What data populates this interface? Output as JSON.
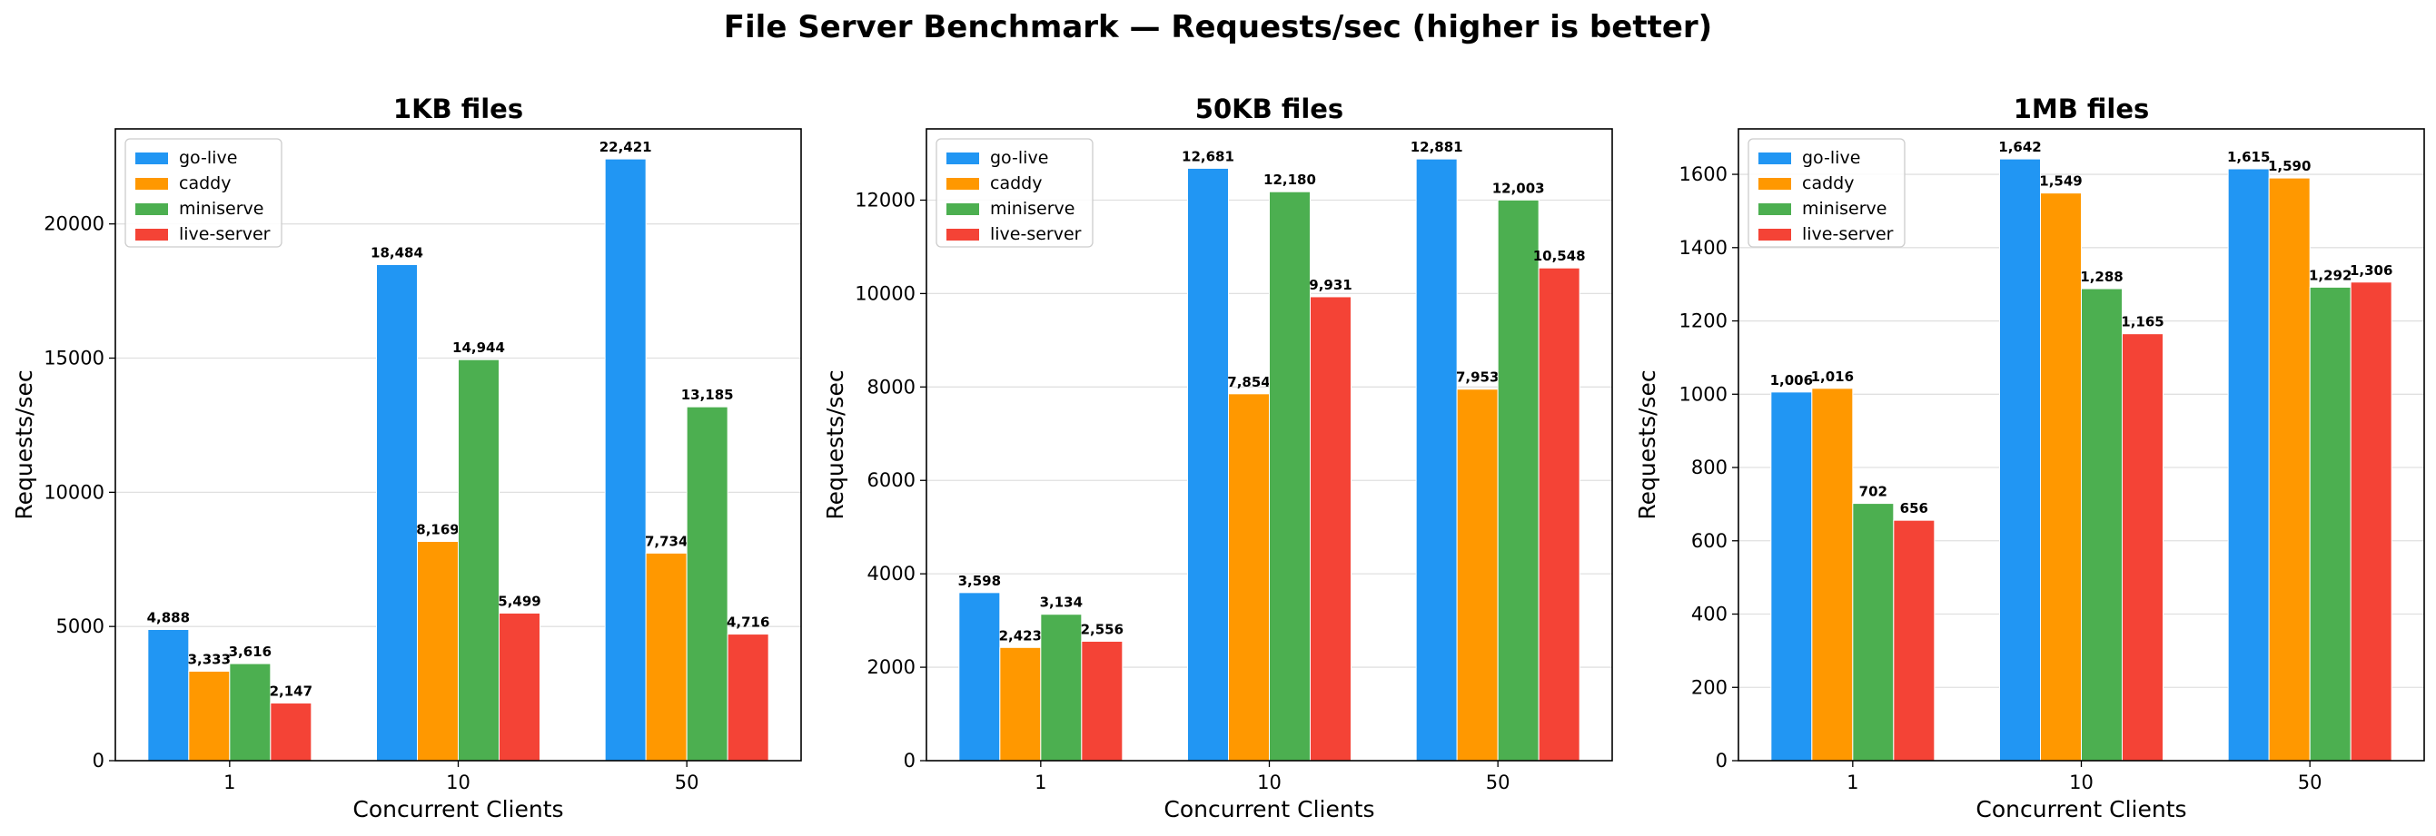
{
  "suptitle": "File Server Benchmark — Requests/sec (higher is better)",
  "colors": {
    "go-live": "#2196F3",
    "caddy": "#FF9800",
    "miniserve": "#4CAF50",
    "live-server": "#F44336"
  },
  "chart_data": [
    {
      "type": "bar",
      "title": "1KB files",
      "xlabel": "Concurrent Clients",
      "ylabel": "Requests/sec",
      "categories": [
        "1",
        "10",
        "50"
      ],
      "ylim": [
        0,
        23541
      ],
      "yticks": [
        0,
        5000,
        10000,
        15000,
        20000
      ],
      "grid": "y",
      "legend_position": "upper-left",
      "series": [
        {
          "name": "go-live",
          "values": [
            4888,
            18484,
            22421
          ],
          "labels": [
            "4,888",
            "18,484",
            "22,421"
          ]
        },
        {
          "name": "caddy",
          "values": [
            3333,
            8169,
            7734
          ],
          "labels": [
            "3,333",
            "8,169",
            "7,734"
          ]
        },
        {
          "name": "miniserve",
          "values": [
            3616,
            14944,
            13185
          ],
          "labels": [
            "3,616",
            "14,944",
            "13,185"
          ]
        },
        {
          "name": "live-server",
          "values": [
            2147,
            5499,
            4716
          ],
          "labels": [
            "2,147",
            "5,499",
            "4,716"
          ]
        }
      ]
    },
    {
      "type": "bar",
      "title": "50KB files",
      "xlabel": "Concurrent Clients",
      "ylabel": "Requests/sec",
      "categories": [
        "1",
        "10",
        "50"
      ],
      "ylim": [
        0,
        13525
      ],
      "yticks": [
        0,
        2000,
        4000,
        6000,
        8000,
        10000,
        12000
      ],
      "grid": "y",
      "legend_position": "upper-left",
      "series": [
        {
          "name": "go-live",
          "values": [
            3598,
            12681,
            12881
          ],
          "labels": [
            "3,598",
            "12,681",
            "12,881"
          ]
        },
        {
          "name": "caddy",
          "values": [
            2423,
            7854,
            7953
          ],
          "labels": [
            "2,423",
            "7,854",
            "7,953"
          ]
        },
        {
          "name": "miniserve",
          "values": [
            3134,
            12180,
            12003
          ],
          "labels": [
            "3,134",
            "12,180",
            "12,003"
          ]
        },
        {
          "name": "live-server",
          "values": [
            2556,
            9931,
            10548
          ],
          "labels": [
            "2,556",
            "9,931",
            "10,548"
          ]
        }
      ]
    },
    {
      "type": "bar",
      "title": "1MB files",
      "xlabel": "Concurrent Clients",
      "ylabel": "Requests/sec",
      "categories": [
        "1",
        "10",
        "50"
      ],
      "ylim": [
        0,
        1724
      ],
      "yticks": [
        0,
        200,
        400,
        600,
        800,
        1000,
        1200,
        1400,
        1600
      ],
      "grid": "y",
      "legend_position": "upper-left",
      "series": [
        {
          "name": "go-live",
          "values": [
            1006,
            1642,
            1615
          ],
          "labels": [
            "1,006",
            "1,642",
            "1,615"
          ]
        },
        {
          "name": "caddy",
          "values": [
            1016,
            1549,
            1590
          ],
          "labels": [
            "1,016",
            "1,549",
            "1,590"
          ]
        },
        {
          "name": "miniserve",
          "values": [
            702,
            1288,
            1292
          ],
          "labels": [
            "702",
            "1,288",
            "1,292"
          ]
        },
        {
          "name": "live-server",
          "values": [
            656,
            1165,
            1306
          ],
          "labels": [
            "656",
            "1,165",
            "1,306"
          ]
        }
      ]
    }
  ]
}
